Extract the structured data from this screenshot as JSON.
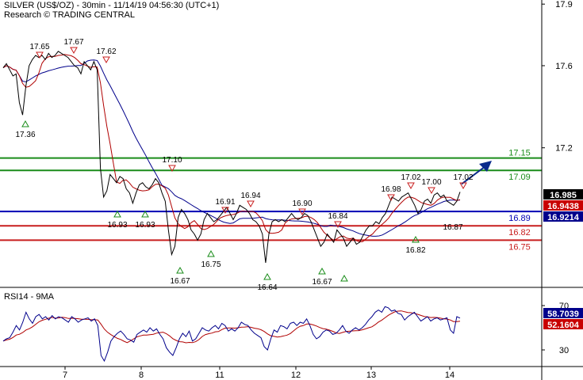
{
  "header": {
    "line1": "SILVER (US$/OZ) - 30min - 11/14/19 04:56:30 (UTC+1)",
    "line2": "Research © TRADING CENTRAL"
  },
  "chart_data": [
    {
      "type": "line",
      "title": "SILVER (US$/OZ) - 30min",
      "y_ticks": [
        "17.9",
        "17.6",
        "17.2"
      ],
      "ylim": [
        16.52,
        17.92
      ],
      "x_ticks": [
        "7",
        "8",
        "11",
        "12",
        "13",
        "14"
      ],
      "series": [
        {
          "values": [
            17.59,
            17.61,
            17.58,
            17.55,
            17.56,
            17.42,
            17.36,
            17.5,
            17.6,
            17.63,
            17.65,
            17.64,
            17.65,
            17.63,
            17.66,
            17.64,
            17.65,
            17.67,
            17.66,
            17.65,
            17.64,
            17.62,
            17.6,
            17.59,
            17.56,
            17.62,
            17.6,
            17.58,
            17.62,
            17.58,
            17.1,
            16.96,
            16.99,
            17.07,
            17.05,
            17.03,
            17.06,
            17.05,
            17.0,
            16.98,
            16.93,
            16.98,
            17.02,
            17.03,
            17.01,
            17.0,
            17.02,
            17.05,
            17.03,
            16.98,
            16.94,
            16.8,
            16.68,
            16.72,
            16.86,
            16.9,
            16.88,
            16.85,
            16.8,
            16.78,
            16.75,
            16.78,
            16.85,
            16.88,
            16.86,
            16.84,
            16.85,
            16.87,
            16.89,
            16.91,
            16.88,
            16.85,
            16.88,
            16.92,
            16.91,
            16.9,
            16.88,
            16.85,
            16.84,
            16.82,
            16.78,
            16.64,
            16.78,
            16.84,
            16.85,
            16.84,
            16.85,
            16.84,
            16.86,
            16.88,
            16.86,
            16.85,
            16.86,
            16.88,
            16.87,
            16.84,
            16.8,
            16.76,
            16.72,
            16.74,
            16.78,
            16.76,
            16.74,
            16.8,
            16.78,
            16.76,
            16.72,
            16.74,
            16.76,
            16.73,
            16.74,
            16.77,
            16.8,
            16.82,
            16.82,
            16.84,
            16.83,
            16.86,
            16.88,
            16.92,
            16.96,
            16.95,
            16.94,
            16.96,
            16.97,
            16.98,
            16.95,
            16.92,
            16.88,
            16.9,
            16.94,
            16.95,
            16.93,
            16.97,
            16.98,
            16.96,
            16.97,
            16.94,
            16.93,
            16.92,
            16.94,
            16.985
          ]
        }
      ],
      "moving_average_colors": [
        "#b00000",
        "#00008b"
      ],
      "price_labels": {
        "highs": [
          "17.65",
          "17.67",
          "17.62",
          "17.10",
          "16.91",
          "16.94",
          "16.90",
          "16.84",
          "16.98",
          "17.02",
          "17.00",
          "17.02"
        ],
        "lows": [
          "17.36",
          "16.93",
          "16.93",
          "16.67",
          "16.75",
          "16.64",
          "16.67",
          "16.82",
          "16.87"
        ]
      },
      "horizontal_levels": [
        {
          "label": "17.15",
          "color": "#1a8c1a"
        },
        {
          "label": "17.09",
          "color": "#1a8c1a"
        },
        {
          "label": "16.89",
          "color": "#0000b4"
        },
        {
          "label": "16.82",
          "color": "#c81e1e"
        },
        {
          "label": "16.75",
          "color": "#c81e1e"
        }
      ],
      "value_badges": [
        {
          "label": "16.985",
          "bg": "#000000",
          "fg": "#ffffff"
        },
        {
          "label": "16.9438",
          "bg": "#c80000",
          "fg": "#ffffff"
        },
        {
          "label": "16.9214",
          "bg": "#00008b",
          "fg": "#ffffff"
        }
      ],
      "arrow_color": "#0a2a8c",
      "grid": false
    },
    {
      "type": "line",
      "title": "RSI14 - 9MA",
      "y_ticks": [
        "70",
        "30"
      ],
      "ylim": [
        15,
        85
      ],
      "series": [
        {
          "values": [
            38,
            40,
            41,
            46,
            52,
            48,
            55,
            64,
            58,
            54,
            60,
            62,
            58,
            60,
            57,
            61,
            58,
            60,
            59,
            57,
            55,
            60,
            58,
            55,
            57,
            58,
            59,
            56,
            58,
            52,
            25,
            20,
            28,
            38,
            42,
            45,
            47,
            44,
            40,
            39,
            37,
            44,
            46,
            48,
            46,
            50,
            47,
            49,
            44,
            40,
            32,
            28,
            25,
            32,
            40,
            45,
            42,
            47,
            38,
            40,
            45,
            50,
            48,
            47,
            50,
            52,
            49,
            54,
            52,
            47,
            49,
            47,
            50,
            55,
            53,
            52,
            48,
            45,
            43,
            41,
            33,
            30,
            40,
            48,
            46,
            52,
            51,
            49,
            54,
            55,
            52,
            55,
            54,
            58,
            52,
            44,
            40,
            42,
            46,
            48,
            47,
            44,
            45,
            48,
            52,
            47,
            45,
            48,
            50,
            48,
            50,
            53,
            57,
            60,
            64,
            66,
            64,
            69,
            68,
            65,
            66,
            63,
            62,
            57,
            60,
            62,
            64,
            60,
            56,
            58,
            60,
            56,
            58,
            59,
            57,
            58,
            59,
            48,
            45,
            60,
            58.7
          ]
        }
      ],
      "value_badges": [
        {
          "label": "58.7039",
          "bg": "#00008b",
          "fg": "#ffffff"
        },
        {
          "label": "52.1604",
          "bg": "#c80000",
          "fg": "#ffffff"
        }
      ]
    }
  ]
}
